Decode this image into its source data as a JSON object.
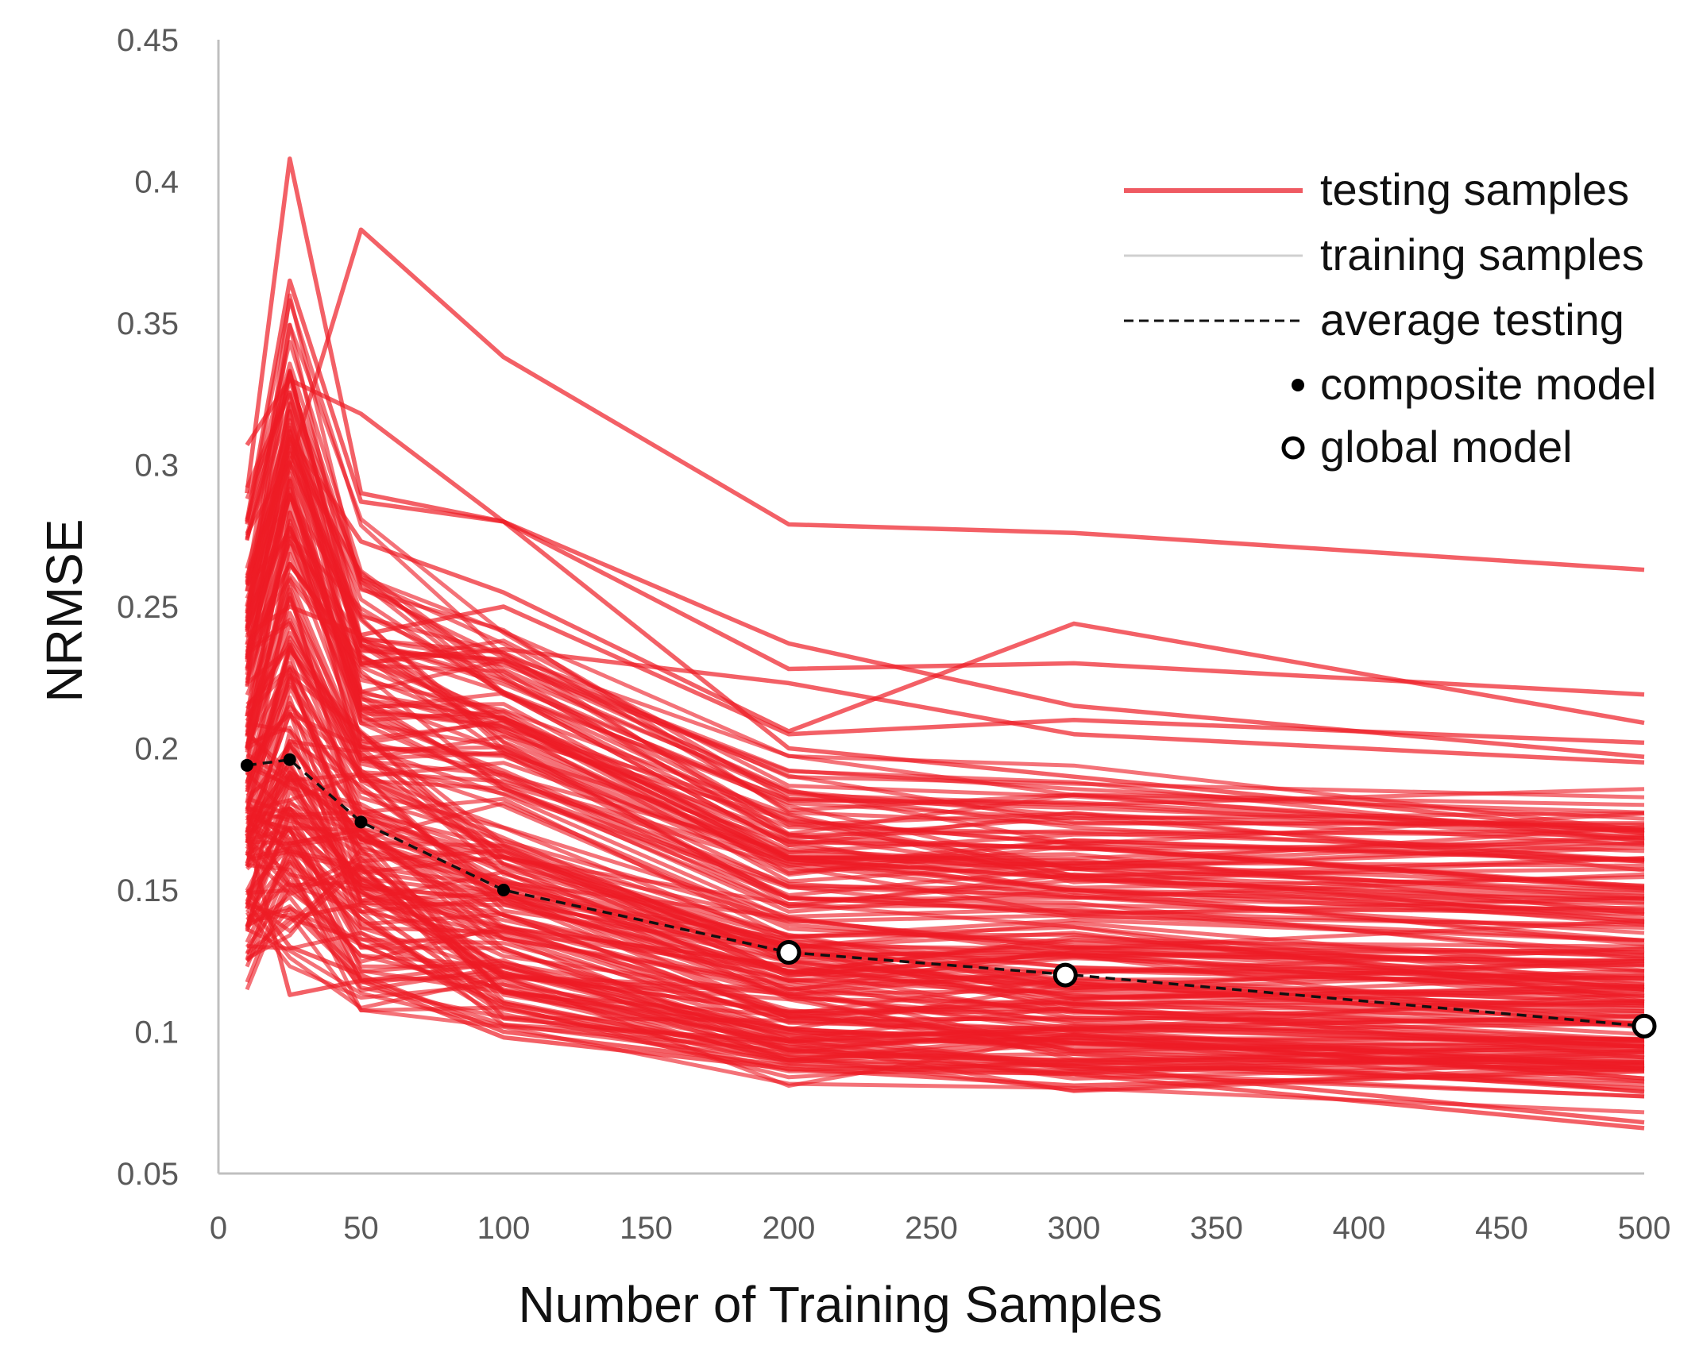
{
  "chart_data": {
    "type": "line",
    "title": "",
    "xlabel": "Number of Training Samples",
    "ylabel": "NRMSE",
    "xlim": [
      0,
      500
    ],
    "ylim": [
      0.05,
      0.45
    ],
    "xticks": [
      "0",
      "50",
      "100",
      "150",
      "200",
      "250",
      "300",
      "350",
      "400",
      "450",
      "500"
    ],
    "yticks": [
      "0.05",
      "0.1",
      "0.15",
      "0.2",
      "0.25",
      "0.3",
      "0.35",
      "0.4",
      "0.45"
    ],
    "grid": false,
    "legend_position": "top-right",
    "x": [
      10,
      25,
      50,
      100,
      200,
      300,
      500
    ],
    "colors": {
      "testing": "#ee1c25",
      "training": "#d0d0d0",
      "average": "#111111",
      "axis": "#bfbfbf"
    },
    "legend": [
      {
        "label": "testing samples",
        "style": "solid-red"
      },
      {
        "label": "training samples",
        "style": "solid-gray"
      },
      {
        "label": "average testing",
        "style": "dashed-black"
      },
      {
        "label": "composite model",
        "style": "dot"
      },
      {
        "label": "global model",
        "style": "circle"
      }
    ],
    "average_testing": [
      0.194,
      0.196,
      0.174,
      0.15,
      0.128,
      0.12,
      0.102
    ],
    "composite_model": [
      {
        "x": 10,
        "y": 0.194
      },
      {
        "x": 25,
        "y": 0.196
      },
      {
        "x": 50,
        "y": 0.174
      },
      {
        "x": 100,
        "y": 0.15
      }
    ],
    "global_model": [
      {
        "x": 200,
        "y": 0.128
      },
      {
        "x": 297,
        "y": 0.12
      },
      {
        "x": 500,
        "y": 0.102
      }
    ],
    "testing_series_highlighted": [
      [
        0.29,
        0.408,
        0.29,
        0.28,
        0.2,
        0.19,
        0.17
      ],
      [
        0.26,
        0.3,
        0.383,
        0.338,
        0.279,
        0.276,
        0.263
      ],
      [
        0.307,
        0.33,
        0.318,
        0.28,
        0.237,
        0.215,
        0.197
      ],
      [
        0.28,
        0.365,
        0.287,
        0.28,
        0.228,
        0.23,
        0.219
      ],
      [
        0.25,
        0.31,
        0.273,
        0.255,
        0.206,
        0.244,
        0.209
      ],
      [
        0.2,
        0.265,
        0.23,
        0.235,
        0.223,
        0.205,
        0.195
      ],
      [
        0.24,
        0.25,
        0.24,
        0.25,
        0.205,
        0.21,
        0.202
      ],
      [
        0.17,
        0.113,
        0.118,
        0.098,
        0.087,
        0.081,
        0.086
      ],
      [
        0.15,
        0.13,
        0.12,
        0.1,
        0.088,
        0.085,
        0.066
      ],
      [
        0.137,
        0.16,
        0.14,
        0.108,
        0.09,
        0.088,
        0.068
      ],
      [
        0.145,
        0.14,
        0.145,
        0.11,
        0.092,
        0.09,
        0.08
      ]
    ],
    "testing_series_bulk_range": {
      "lower": [
        0.136,
        0.14,
        0.13,
        0.11,
        0.09,
        0.088,
        0.082
      ],
      "upper": [
        0.27,
        0.34,
        0.26,
        0.24,
        0.19,
        0.185,
        0.18
      ],
      "count": 180
    }
  }
}
